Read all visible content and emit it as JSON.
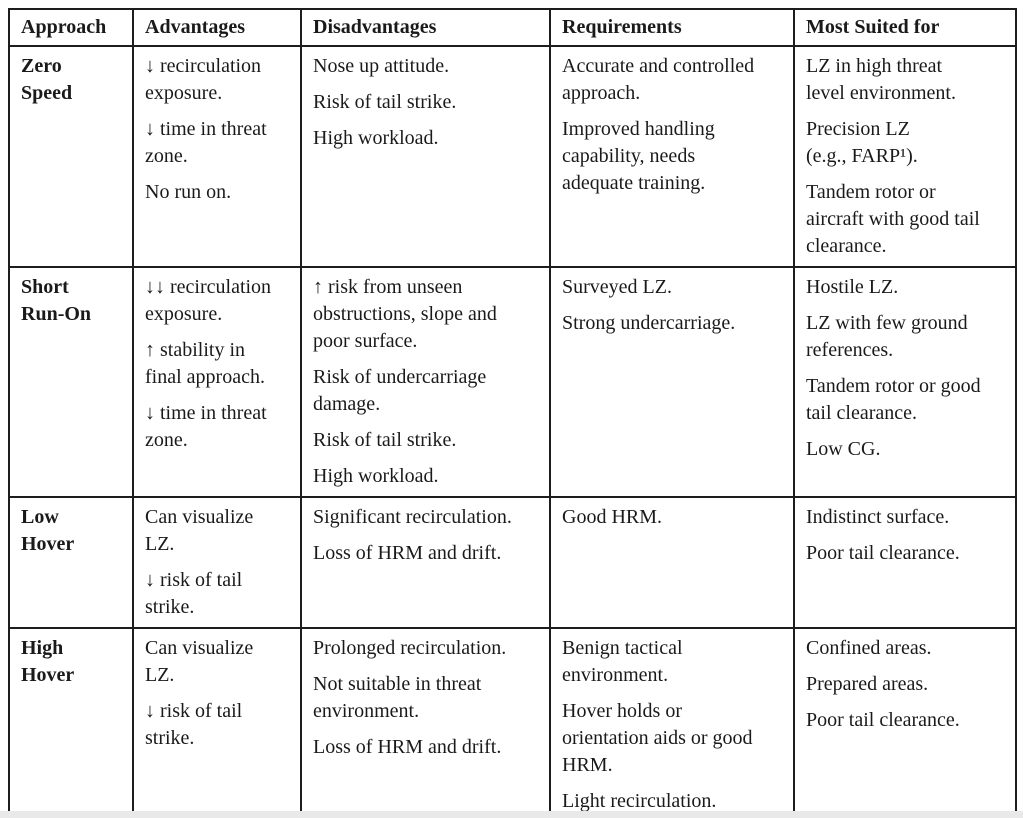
{
  "page": {
    "background": "#ffffff",
    "text_color": "#1a1a1a",
    "border_color": "#1d1d1d",
    "bottom_strip_color": "#e9e9e9"
  },
  "table": {
    "headers": [
      "Approach",
      "Advantages",
      "Disadvantages",
      "Requirements",
      "Most Suited for"
    ],
    "rows": [
      {
        "approach": "Zero\nSpeed",
        "advantages": [
          "↓ recirculation\nexposure.",
          "↓ time in threat\nzone.",
          "No run on."
        ],
        "disadvantages": [
          "Nose up attitude.",
          "Risk of tail strike.",
          "High workload."
        ],
        "requirements": [
          "Accurate and controlled\napproach.",
          "Improved handling\ncapability, needs\nadequate training."
        ],
        "most_suited_for": [
          "LZ in high threat\nlevel environment.",
          "Precision LZ\n(e.g., FARP¹).",
          "Tandem rotor or\naircraft with good tail\nclearance."
        ]
      },
      {
        "approach": "Short\nRun-On",
        "advantages": [
          "↓↓ recirculation\nexposure.",
          "↑ stability in\nfinal approach.",
          "↓ time in threat\nzone."
        ],
        "disadvantages": [
          "↑ risk from unseen\nobstructions, slope and\npoor surface.",
          "Risk of undercarriage\ndamage.",
          "Risk of tail strike.",
          "High workload."
        ],
        "requirements": [
          "Surveyed LZ.",
          "Strong undercarriage."
        ],
        "most_suited_for": [
          "Hostile LZ.",
          "LZ with few ground\nreferences.",
          "Tandem rotor or good\ntail clearance.",
          "Low CG."
        ]
      },
      {
        "approach": "Low\nHover",
        "advantages": [
          "Can visualize\nLZ.",
          "↓ risk of tail\nstrike."
        ],
        "disadvantages": [
          "Significant recirculation.",
          "Loss of HRM and drift."
        ],
        "requirements": [
          "Good HRM."
        ],
        "most_suited_for": [
          "Indistinct surface.",
          "Poor tail clearance."
        ]
      },
      {
        "approach": "High\nHover",
        "advantages": [
          "Can visualize\nLZ.",
          "↓ risk of tail\nstrike."
        ],
        "disadvantages": [
          "Prolonged recirculation.",
          "Not suitable in threat\nenvironment.",
          "Loss of HRM and drift."
        ],
        "requirements": [
          "Benign tactical\nenvironment.",
          "Hover holds or\norientation aids or good\nHRM.",
          "Light recirculation."
        ],
        "most_suited_for": [
          "Confined areas.",
          "Prepared areas.",
          "Poor tail clearance."
        ]
      }
    ]
  }
}
